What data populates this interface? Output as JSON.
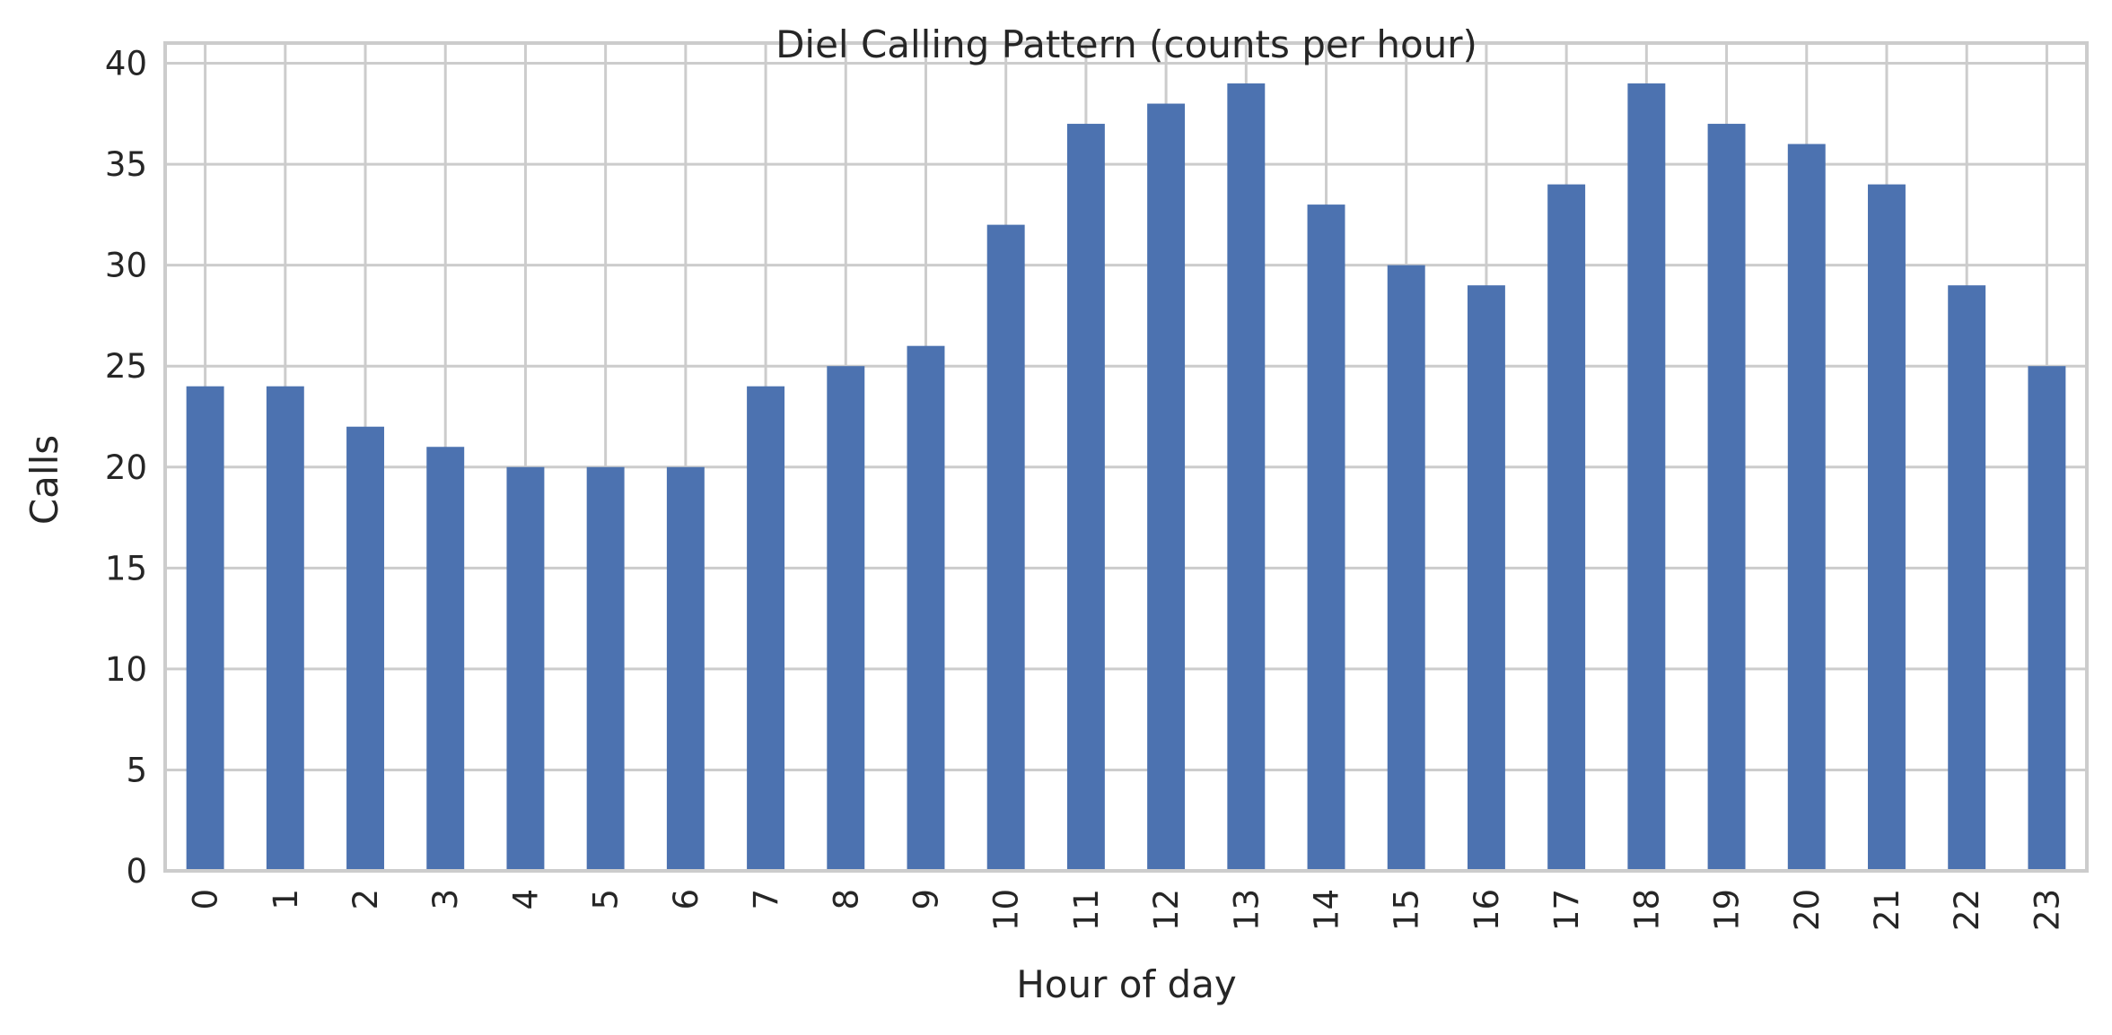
{
  "chart_data": {
    "type": "bar",
    "title": "Diel Calling Pattern (counts per hour)",
    "xlabel": "Hour of day",
    "ylabel": "Calls",
    "categories": [
      "0",
      "1",
      "2",
      "3",
      "4",
      "5",
      "6",
      "7",
      "8",
      "9",
      "10",
      "11",
      "12",
      "13",
      "14",
      "15",
      "16",
      "17",
      "18",
      "19",
      "20",
      "21",
      "22",
      "23"
    ],
    "values": [
      24,
      24,
      22,
      21,
      20,
      20,
      20,
      24,
      25,
      26,
      32,
      37,
      38,
      39,
      33,
      30,
      29,
      34,
      39,
      37,
      36,
      34,
      29,
      25
    ],
    "yticks": [
      0,
      5,
      10,
      15,
      20,
      25,
      30,
      35,
      40
    ],
    "ylim": [
      0,
      41
    ],
    "grid": true,
    "legend": "none",
    "colors": {
      "bar": "#4c72b0",
      "grid": "#cccccc",
      "frame": "#cccccc",
      "text": "#262626"
    }
  }
}
